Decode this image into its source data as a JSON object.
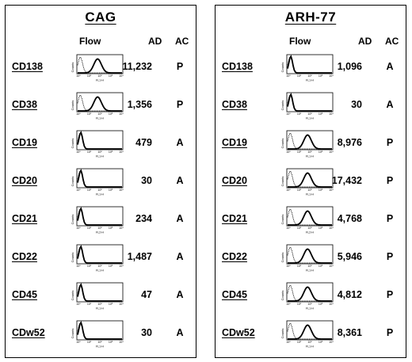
{
  "panels": [
    {
      "title": "CAG",
      "headers": {
        "flow": "Flow",
        "ad": "AD",
        "ac": "AC"
      },
      "rows": [
        {
          "marker": "CD138",
          "ad": "11,232",
          "ac": "P",
          "xlabel": "FL1-H",
          "positive": true
        },
        {
          "marker": "CD38",
          "ad": "1,356",
          "ac": "P",
          "xlabel": "FL1-H",
          "positive": true
        },
        {
          "marker": "CD19",
          "ad": "479",
          "ac": "A",
          "xlabel": "FL1-H",
          "positive": false
        },
        {
          "marker": "CD20",
          "ad": "30",
          "ac": "A",
          "xlabel": "FL1-H",
          "positive": false
        },
        {
          "marker": "CD21",
          "ad": "234",
          "ac": "A",
          "xlabel": "FL2-H",
          "positive": false
        },
        {
          "marker": "CD22",
          "ad": "1,487",
          "ac": "A",
          "xlabel": "FL1-H",
          "positive": false
        },
        {
          "marker": "CD45",
          "ad": "47",
          "ac": "A",
          "xlabel": "FL1-H",
          "positive": false
        },
        {
          "marker": "CDw52",
          "ad": "30",
          "ac": "A",
          "xlabel": "FL1-H",
          "positive": false
        }
      ]
    },
    {
      "title": "ARH-77",
      "headers": {
        "flow": "Flow",
        "ad": "AD",
        "ac": "AC"
      },
      "rows": [
        {
          "marker": "CD138",
          "ad": "1,096",
          "ac": "A",
          "xlabel": "FL1-H",
          "positive": false
        },
        {
          "marker": "CD38",
          "ad": "30",
          "ac": "A",
          "xlabel": "FL1-H",
          "positive": false
        },
        {
          "marker": "CD19",
          "ad": "8,976",
          "ac": "P",
          "xlabel": "FL1-H",
          "positive": true
        },
        {
          "marker": "CD20",
          "ad": "17,432",
          "ac": "P",
          "xlabel": "FL1-H",
          "positive": true
        },
        {
          "marker": "CD21",
          "ad": "4,768",
          "ac": "P",
          "xlabel": "FL2-H",
          "positive": true
        },
        {
          "marker": "CD22",
          "ad": "5,946",
          "ac": "P",
          "xlabel": "FL1-H",
          "positive": true
        },
        {
          "marker": "CD45",
          "ad": "4,812",
          "ac": "P",
          "xlabel": "FL1-H",
          "positive": true
        },
        {
          "marker": "CDw52",
          "ad": "8,361",
          "ac": "P",
          "xlabel": "FL1-H",
          "positive": true
        }
      ]
    }
  ],
  "axis": {
    "ylabel": "Counts",
    "ticks": [
      "10⁰",
      "10¹",
      "10²",
      "10³",
      "10⁴"
    ]
  }
}
